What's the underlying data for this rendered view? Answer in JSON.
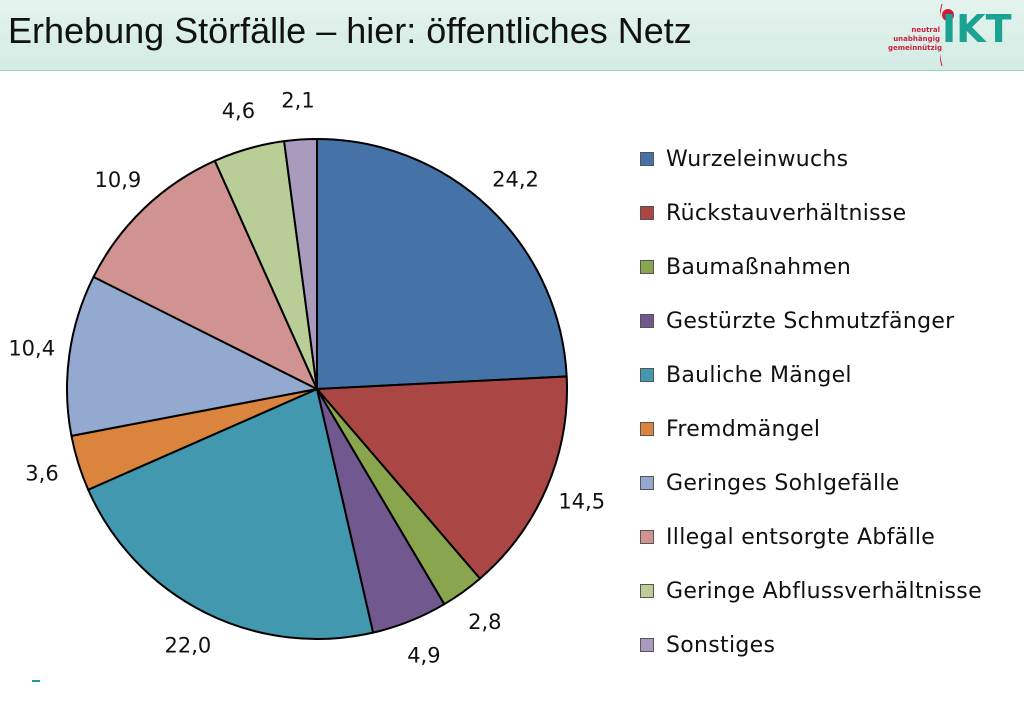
{
  "header": {
    "title": "Erhebung Störfälle – hier: öffentliches Netz",
    "logo": {
      "tagline": [
        "neutral",
        "unabhängig",
        "gemeinnützig"
      ],
      "brand": "IKT",
      "brand_color": "#1aa292",
      "accent_color": "#cc1e3c"
    }
  },
  "chart_data": {
    "type": "pie",
    "title": "",
    "start_angle_deg": 0,
    "direction": "clockwise",
    "legend_position": "right",
    "slices": [
      {
        "label": "Wurzeleinwuchs",
        "value": 24.2,
        "value_label": "24,2",
        "color": "#4572a7"
      },
      {
        "label": "Rückstauverhältnisse",
        "value": 14.5,
        "value_label": "14,5",
        "color": "#aa4643"
      },
      {
        "label": "Baumaßnahmen",
        "value": 2.8,
        "value_label": "2,8",
        "color": "#89a54e"
      },
      {
        "label": "Gestürzte Schmutzfänger",
        "value": 4.9,
        "value_label": "4,9",
        "color": "#71588f"
      },
      {
        "label": "Bauliche Mängel",
        "value": 22.0,
        "value_label": "22,0",
        "color": "#4198af"
      },
      {
        "label": "Fremdmängel",
        "value": 3.6,
        "value_label": "3,6",
        "color": "#db843d"
      },
      {
        "label": "Geringes Sohlgefälle",
        "value": 10.4,
        "value_label": "10,4",
        "color": "#93a9cf"
      },
      {
        "label": "Illegal entsorgte Abfälle",
        "value": 10.9,
        "value_label": "10,9",
        "color": "#d19392"
      },
      {
        "label": "Geringe Abflussverhältnisse",
        "value": 4.6,
        "value_label": "4,6",
        "color": "#b9cd96"
      },
      {
        "label": "Sonstiges",
        "value": 2.1,
        "value_label": "2,1",
        "color": "#a99bbd"
      }
    ]
  }
}
